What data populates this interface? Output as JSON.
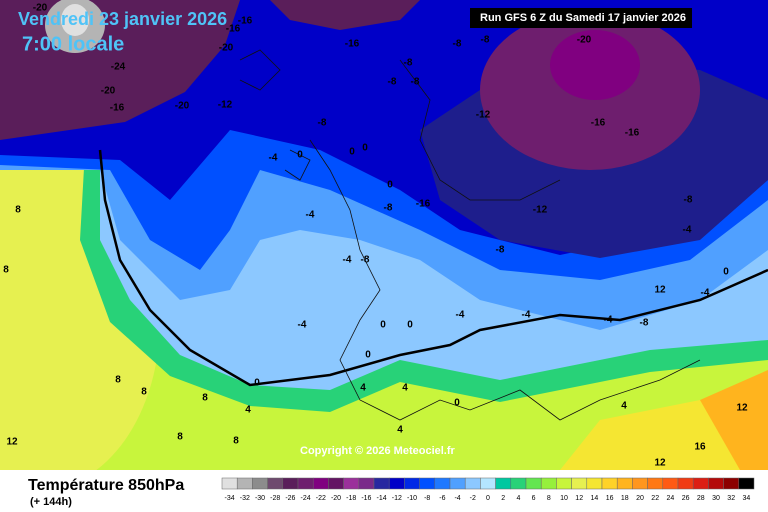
{
  "header": {
    "date": "Vendredi 23 janvier 2026",
    "time": "7:00 locale",
    "run": "Run GFS 6 Z du Samedi 17 janvier 2026"
  },
  "copyright": "Copyright © 2026 Meteociel.fr",
  "map": {
    "labels": [
      -20,
      -24,
      -20,
      -16,
      -20,
      -12,
      -16,
      -20,
      -16,
      -16,
      -8,
      -8,
      -20,
      -8,
      -8,
      -8,
      -8,
      -12,
      -16,
      -16,
      -4,
      0,
      0,
      0,
      0,
      -8,
      -16,
      -8,
      -4,
      0,
      -4,
      -4,
      -8,
      12,
      -4,
      -4,
      -4,
      -4,
      0,
      0,
      0,
      0,
      4,
      4,
      8,
      8,
      8,
      8,
      8,
      12,
      8,
      8,
      4,
      4,
      0,
      4,
      16,
      12,
      12,
      -8,
      -12,
      -4,
      -8
    ]
  },
  "legend": {
    "title": "Température 850hPa",
    "lead": "(+ 144h)",
    "scale": {
      "values": [
        -34,
        -32,
        -30,
        -28,
        -26,
        -24,
        -22,
        -20,
        -18,
        -16,
        -14,
        -12,
        -10,
        -8,
        -6,
        -4,
        -2,
        0,
        2,
        4,
        6,
        8,
        10,
        12,
        14,
        16,
        18,
        20,
        22,
        24,
        26,
        28,
        30,
        32,
        34
      ],
      "colors": [
        "#e0e0e0",
        "#b4b4b4",
        "#8c8c8c",
        "#6e4a6e",
        "#5a1e5a",
        "#6e1e6e",
        "#800080",
        "#641464",
        "#9b309b",
        "#7a2a8a",
        "#2828a0",
        "#0000c8",
        "#0028e6",
        "#0050ff",
        "#1e78ff",
        "#50a0ff",
        "#8cc8ff",
        "#b4e6ff",
        "#00c8a0",
        "#28d278",
        "#64e650",
        "#96f03c",
        "#c8f53c",
        "#e6f050",
        "#f5e632",
        "#ffd228",
        "#ffb41e",
        "#ff961e",
        "#ff7814",
        "#ff5a14",
        "#f03c14",
        "#dc1e14",
        "#b40a0a",
        "#8c0000",
        "#000000"
      ]
    }
  }
}
